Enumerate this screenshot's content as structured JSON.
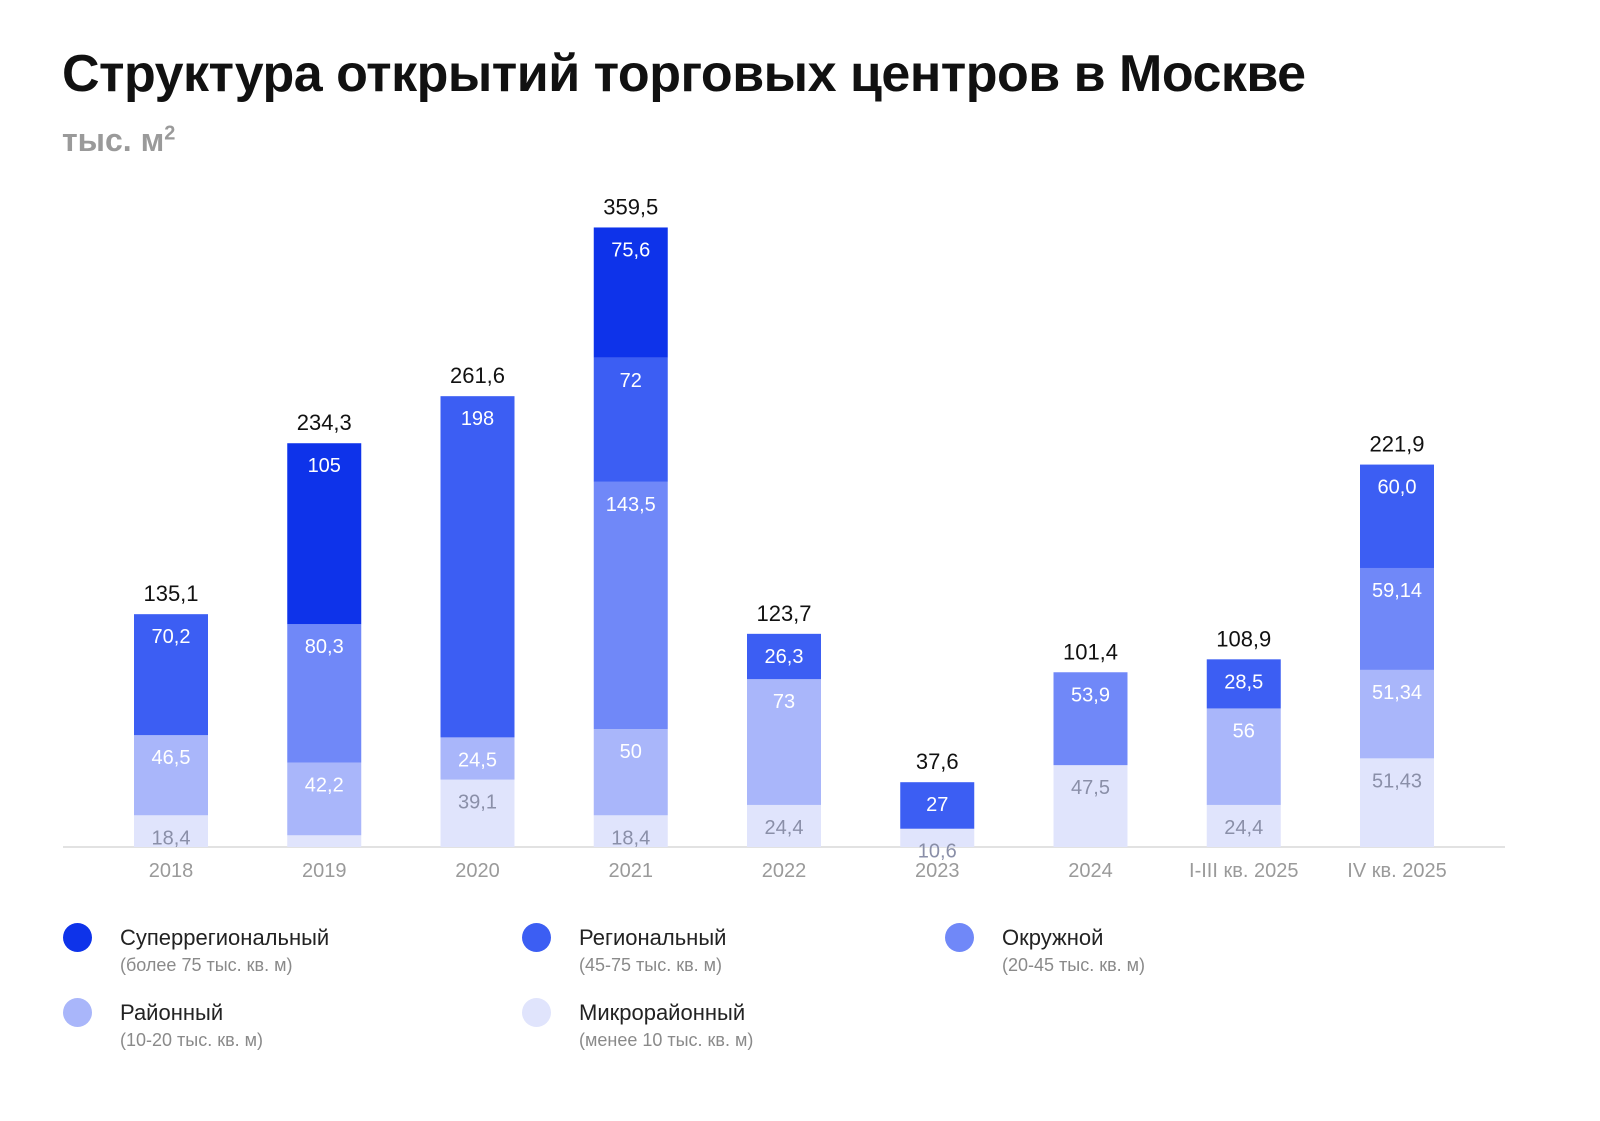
{
  "title": "Структура открытий торговых центров в Москве",
  "unit": "тыс. м",
  "unit_sup": "2",
  "colors": {
    "super": "#0e33ea",
    "regional": "#3c5ef3",
    "okruzhnoy": "#7088f8",
    "rayonny": "#a9b6fa",
    "micro": "#e0e4fc"
  },
  "chart_data": {
    "type": "bar",
    "stacked": true,
    "categories": [
      "2018",
      "2019",
      "2020",
      "2021",
      "2022",
      "2023",
      "2024",
      "I-III кв. 2025",
      "IV кв. 2025"
    ],
    "totals": [
      "135,1",
      "234,3",
      "261,6",
      "359,5",
      "123,7",
      "37,6",
      "101,4",
      "108,9",
      "221,9"
    ],
    "ylim": [
      0,
      380
    ],
    "series": [
      {
        "name": "Микрорайонный",
        "key": "micro",
        "values": [
          18.4,
          6.8,
          39.1,
          18.4,
          24.4,
          10.6,
          47.5,
          24.4,
          51.43
        ],
        "labels": [
          "18,4",
          "",
          "39,1",
          "18,4",
          "24,4",
          "10,6",
          "47,5",
          "24,4",
          "51,43"
        ]
      },
      {
        "name": "Районный",
        "key": "rayonny",
        "values": [
          46.5,
          42.2,
          24.5,
          50,
          73,
          0,
          0,
          56,
          51.34
        ],
        "labels": [
          "46,5",
          "42,2",
          "24,5",
          "50",
          "73",
          "",
          "",
          "56",
          "51,34"
        ]
      },
      {
        "name": "Окружной",
        "key": "okruzhnoy",
        "values": [
          0,
          80.3,
          0,
          143.5,
          0,
          0,
          53.9,
          0,
          59.14
        ],
        "labels": [
          "",
          "80,3",
          "",
          "143,5",
          "",
          "",
          "53,9",
          "",
          "59,14"
        ]
      },
      {
        "name": "Региональный",
        "key": "regional",
        "values": [
          70.2,
          0,
          198,
          72,
          26.3,
          27,
          0,
          28.5,
          60.0
        ],
        "labels": [
          "70,2",
          "",
          "198",
          "72",
          "26,3",
          "27",
          "",
          "28,5",
          "60,0"
        ]
      },
      {
        "name": "Суперрегиональный",
        "key": "super",
        "values": [
          0,
          105,
          0,
          75.6,
          0,
          0,
          0,
          0,
          0
        ],
        "labels": [
          "",
          "105",
          "",
          "75,6",
          "",
          "",
          "",
          "",
          ""
        ]
      }
    ]
  },
  "legend": [
    {
      "key": "super",
      "name": "Суперрегиональный",
      "note": "(более 75 тыс. кв. м)"
    },
    {
      "key": "regional",
      "name": "Региональный",
      "note": "(45-75 тыс. кв. м)"
    },
    {
      "key": "okruzhnoy",
      "name": "Окружной",
      "note": "(20-45 тыс. кв. м)"
    },
    {
      "key": "rayonny",
      "name": "Районный",
      "note": "(10-20 тыс. кв. м)"
    },
    {
      "key": "micro",
      "name": "Микрорайонный",
      "note": "(менее 10 тыс. кв. м)"
    }
  ]
}
